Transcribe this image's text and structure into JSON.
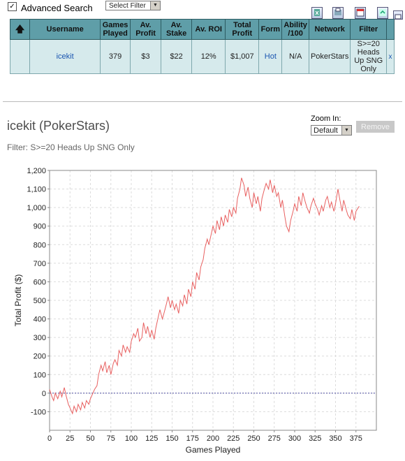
{
  "toolbar": {
    "advanced_search_label": "Advanced Search",
    "advanced_search_checked": true,
    "filter_select_value": "Select Filter",
    "icons": [
      "export-excel-icon",
      "print-icon",
      "delete-icon",
      "refresh-icon",
      "popout-icon"
    ]
  },
  "stats_table": {
    "headers": [
      "",
      "Username",
      "Games Played",
      "Av. Profit",
      "Av. Stake",
      "Av. ROI",
      "Total Profit",
      "Form",
      "Ability /100",
      "Network",
      "Filter",
      ""
    ],
    "row": {
      "username": "icekit",
      "games_played": "379",
      "av_profit": "$3",
      "av_stake": "$22",
      "av_roi": "12%",
      "total_profit": "$1,007",
      "form": "Hot",
      "ability": "N/A",
      "network": "PokerStars",
      "filter": "S>=20 Heads Up SNG Only",
      "remove": "x"
    }
  },
  "player_title": "icekit (PokerStars)",
  "filter_text": "Filter: S>=20 Heads Up SNG Only",
  "zoom": {
    "label": "Zoom In:",
    "value": "Default"
  },
  "remove_button_label": "Remove",
  "chart_data": {
    "type": "line",
    "title": "",
    "xlabel": "Games Played",
    "ylabel": "Total Profit ($)",
    "xlim": [
      0,
      400
    ],
    "ylim": [
      -200,
      1200
    ],
    "x_ticks": [
      0,
      25,
      50,
      75,
      100,
      125,
      150,
      175,
      200,
      225,
      250,
      275,
      300,
      325,
      350,
      375
    ],
    "y_ticks": [
      -100,
      0,
      100,
      200,
      300,
      400,
      500,
      600,
      700,
      800,
      900,
      1000,
      1100,
      1200
    ],
    "y_tick_labels": [
      "-100",
      "0",
      "100",
      "200",
      "300",
      "400",
      "500",
      "600",
      "700",
      "800",
      "900",
      "1,000",
      "1,100",
      "1,200"
    ],
    "grid": true,
    "zero_line": true,
    "line_color": "#e86060",
    "zero_line_color": "#4a4aa0",
    "series": [
      {
        "x": [
          0,
          3,
          5,
          7,
          10,
          13,
          15,
          18,
          20,
          23,
          25,
          28,
          30,
          33,
          35,
          38,
          40,
          43,
          45,
          48,
          50,
          53,
          55,
          58,
          60,
          63,
          65,
          68,
          70,
          73,
          75,
          78,
          80,
          83,
          85,
          88,
          90,
          93,
          95,
          98,
          100,
          103,
          105,
          108,
          110,
          113,
          115,
          118,
          120,
          123,
          125,
          128,
          130,
          133,
          135,
          138,
          140,
          143,
          145,
          148,
          150,
          153,
          155,
          158,
          160,
          163,
          165,
          168,
          170,
          173,
          175,
          178,
          180,
          183,
          185,
          188,
          190,
          193,
          195,
          198,
          200,
          203,
          205,
          208,
          210,
          213,
          215,
          218,
          220,
          223,
          225,
          228,
          230,
          233,
          235,
          238,
          240,
          243,
          245,
          248,
          250,
          253,
          255,
          258,
          260,
          263,
          265,
          268,
          270,
          273,
          275,
          278,
          280,
          283,
          285,
          288,
          290,
          293,
          295,
          298,
          300,
          303,
          305,
          308,
          310,
          313,
          315,
          318,
          320,
          323,
          325,
          328,
          330,
          333,
          335,
          338,
          340,
          343,
          345,
          348,
          350,
          353,
          355,
          358,
          360,
          363,
          365,
          368,
          370,
          373,
          375,
          379
        ],
        "y": [
          20,
          -20,
          -40,
          0,
          -30,
          10,
          -20,
          30,
          -10,
          -60,
          -80,
          -110,
          -70,
          -100,
          -60,
          -90,
          -50,
          -80,
          -40,
          -60,
          -30,
          0,
          20,
          40,
          100,
          150,
          120,
          170,
          110,
          150,
          100,
          160,
          180,
          150,
          230,
          200,
          260,
          220,
          250,
          220,
          280,
          320,
          300,
          350,
          280,
          300,
          380,
          320,
          360,
          300,
          340,
          290,
          350,
          410,
          450,
          400,
          430,
          480,
          520,
          460,
          500,
          450,
          480,
          430,
          500,
          470,
          530,
          480,
          560,
          520,
          600,
          560,
          650,
          610,
          680,
          720,
          780,
          830,
          800,
          860,
          900,
          860,
          930,
          880,
          950,
          900,
          960,
          920,
          990,
          950,
          1000,
          970,
          1050,
          1100,
          1160,
          1120,
          1060,
          1110,
          1050,
          1000,
          1080,
          1020,
          1060,
          980,
          1050,
          1100,
          1130,
          1100,
          1150,
          1080,
          1120,
          1060,
          1080,
          1000,
          1040,
          950,
          900,
          870,
          930,
          980,
          1020,
          980,
          1060,
          1010,
          1080,
          1030,
          1000,
          970,
          1010,
          1050,
          1020,
          990,
          960,
          1010,
          980,
          1040,
          1060,
          1000,
          1030,
          980,
          1020,
          1100,
          1050,
          980,
          1040,
          990,
          960,
          940,
          990,
          930,
          980,
          1007
        ]
      }
    ]
  }
}
